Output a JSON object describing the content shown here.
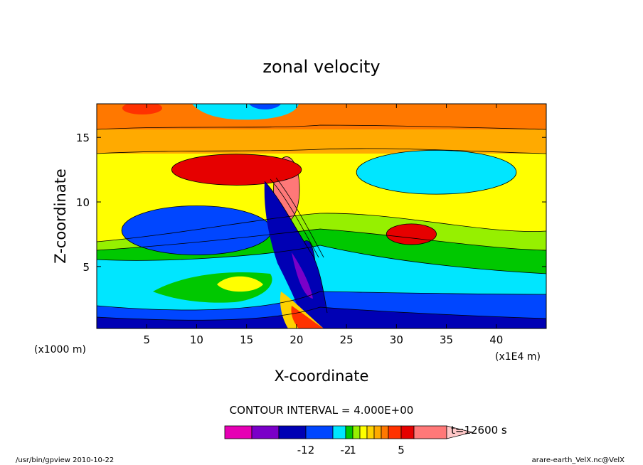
{
  "chart_data": {
    "type": "heatmap",
    "title": "zonal velocity",
    "xlabel": "X-coordinate",
    "ylabel": "Z-coordinate",
    "x_unit_left": "(x1000 m)",
    "x_unit_right": "(x1E4 m)",
    "x_ticks": [
      5,
      10,
      15,
      20,
      25,
      30,
      35,
      40
    ],
    "y_ticks": [
      5,
      10,
      15
    ],
    "xlim": [
      0,
      45
    ],
    "ylim": [
      0.2,
      17.6
    ],
    "contour_interval_text": "CONTOUR INTERVAL = 4.000E+00",
    "time_label": "t=12600 s",
    "colorbar": {
      "colors": [
        "#e600b4",
        "#7a00c8",
        "#0000b4",
        "#0046ff",
        "#00e6ff",
        "#00c800",
        "#96f000",
        "#ffff00",
        "#ffd200",
        "#ffaa00",
        "#ff7800",
        "#ff3200",
        "#e60000",
        "#ff7878",
        "#ffc8c8"
      ],
      "tick_labels": [
        "-12",
        "-2",
        "1",
        "5"
      ]
    },
    "regions": [
      {
        "value": -12,
        "color": "#0000b4",
        "center": [
          21.0,
          4.6
        ],
        "radius": [
          0.9,
          2.4
        ]
      },
      {
        "value": -8,
        "color": "#0046ff",
        "center": [
          10.0,
          7.8
        ],
        "radius": [
          7.5,
          1.9
        ]
      },
      {
        "value": -4,
        "color": "#00e6ff",
        "center": [
          34.0,
          12.3
        ],
        "radius": [
          8.0,
          1.7
        ]
      },
      {
        "value": 16,
        "color": "#ff7878",
        "center": [
          19.0,
          11.0
        ],
        "radius": [
          1.3,
          2.5
        ]
      },
      {
        "value": 12,
        "color": "#e60000",
        "center": [
          14.0,
          12.5
        ],
        "radius": [
          6.5,
          1.2
        ]
      },
      {
        "value": 12,
        "color": "#e60000",
        "center": [
          31.5,
          7.5
        ],
        "radius": [
          2.5,
          0.8
        ]
      }
    ],
    "footer_left": "/usr/bin/gpview  2010-10-22",
    "footer_right": "arare-earth_VelX.nc@VelX"
  }
}
